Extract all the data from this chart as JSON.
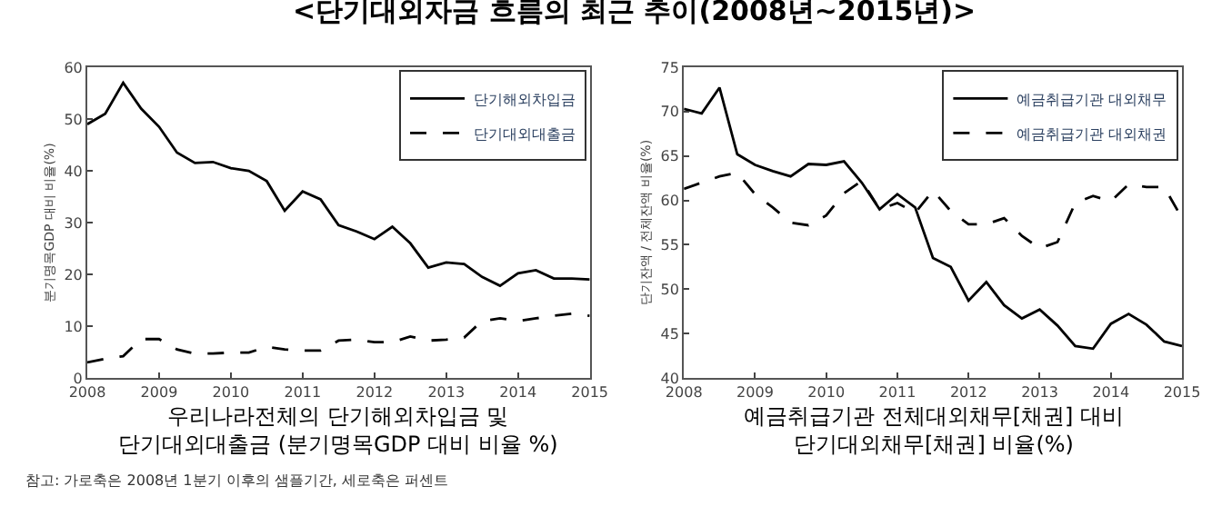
{
  "chart_data": [
    {
      "type": "line",
      "title": "<단기대외자금 흐름의 최근 추이(2008년~2015년)>",
      "xlabel": "우리나라전체의 단기해외차입금 및\n단기대외대출금 (분기명목GDP 대비 비율 %)",
      "ylabel": "분기명목GDP 대비 비율(%)",
      "x": [
        2008,
        2008.25,
        2008.5,
        2008.75,
        2009,
        2009.25,
        2009.5,
        2009.75,
        2010,
        2010.25,
        2010.5,
        2010.75,
        2011,
        2011.25,
        2011.5,
        2011.75,
        2012,
        2012.25,
        2012.5,
        2012.75,
        2013,
        2013.25,
        2013.5,
        2013.75,
        2014,
        2014.25,
        2014.5,
        2014.75,
        2015
      ],
      "series": [
        {
          "name": "단기해외차입금",
          "color": "#000000",
          "line_style": "solid",
          "values": [
            49,
            51,
            57,
            52,
            48.5,
            43.5,
            41.5,
            41.7,
            40.5,
            40,
            38,
            32.3,
            36,
            34.5,
            29.5,
            28.3,
            26.8,
            29.2,
            26,
            21.3,
            22.3,
            22,
            19.5,
            17.8,
            20.2,
            20.8,
            19.2,
            19.2,
            19
          ]
        },
        {
          "name": "단기대외대출금",
          "color": "#000000",
          "line_style": "dashed",
          "values": [
            3,
            3.7,
            4.2,
            7.5,
            7.5,
            5.5,
            4.7,
            4.7,
            4.9,
            4.9,
            6,
            5.5,
            5.3,
            5.3,
            7.2,
            7.4,
            6.9,
            6.9,
            8,
            7.2,
            7.4,
            7.8,
            11,
            11.5,
            11,
            11.5,
            12,
            12.4,
            12
          ]
        }
      ],
      "xlim": [
        2008,
        2015
      ],
      "xticks": [
        2008,
        2009,
        2010,
        2011,
        2012,
        2013,
        2014,
        2015
      ],
      "ylim": [
        0,
        60
      ],
      "yticks": [
        0,
        10,
        20,
        30,
        40,
        50,
        60
      ],
      "legend": "top right",
      "annotations": [
        "참고: 가로축은 2008년 1분기 이후의 샘플기간, 세로축은 퍼센트"
      ]
    },
    {
      "type": "line",
      "xlabel": "예금취급기관 전체대외채무[채권] 대비\n단기대외채무[채권] 비율(%)",
      "ylabel": "단기잔액 / 전체잔액 비율(%)",
      "x": [
        2008,
        2008.25,
        2008.5,
        2008.75,
        2009,
        2009.25,
        2009.5,
        2009.75,
        2010,
        2010.25,
        2010.5,
        2010.75,
        2011,
        2011.25,
        2011.5,
        2011.75,
        2012,
        2012.25,
        2012.5,
        2012.75,
        2013,
        2013.25,
        2013.5,
        2013.75,
        2014,
        2014.25,
        2014.5,
        2014.75,
        2015
      ],
      "series": [
        {
          "name": "예금취급기관 대외채무",
          "color": "#000000",
          "line_style": "solid",
          "values": [
            70.3,
            69.8,
            72.7,
            65.2,
            64,
            63.3,
            62.7,
            64.1,
            64,
            64.4,
            62,
            59,
            60.7,
            59.2,
            53.5,
            52.5,
            48.7,
            50.8,
            48.2,
            46.7,
            47.7,
            45.9,
            43.6,
            43.3,
            46.1,
            47.2,
            46,
            44.1,
            43.6
          ]
        },
        {
          "name": "예금취급기관 대외채권",
          "color": "#000000",
          "line_style": "dashed",
          "values": [
            61.3,
            62,
            62.7,
            63.1,
            60.7,
            59.2,
            57.5,
            57.2,
            58.3,
            60.8,
            62.2,
            59,
            59.7,
            58.6,
            61.1,
            58.8,
            57.3,
            57.3,
            58,
            56,
            54.6,
            55.3,
            59.7,
            60.5,
            59.9,
            61.8,
            61.5,
            61.5,
            58
          ]
        }
      ],
      "xlim": [
        2008,
        2015
      ],
      "xticks": [
        2008,
        2009,
        2010,
        2011,
        2012,
        2013,
        2014,
        2015
      ],
      "ylim": [
        40,
        75
      ],
      "yticks": [
        40,
        45,
        50,
        55,
        60,
        65,
        70,
        75
      ],
      "legend": "top right"
    }
  ]
}
